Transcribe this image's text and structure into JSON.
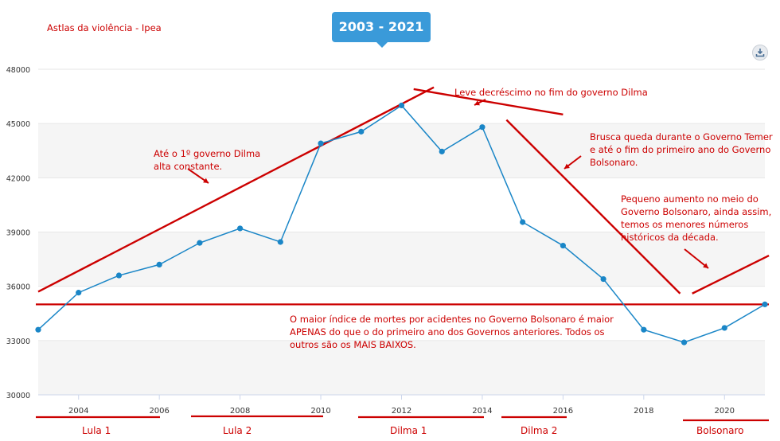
{
  "source_label": "Astlas da violência - Ipea",
  "tooltip": "2003 - 2021",
  "download_icon": "download-icon",
  "chart_data": {
    "type": "line",
    "x": [
      2003,
      2004,
      2005,
      2006,
      2007,
      2008,
      2009,
      2010,
      2011,
      2012,
      2013,
      2014,
      2015,
      2016,
      2017,
      2018,
      2019,
      2020,
      2021
    ],
    "values": [
      33600,
      35650,
      36600,
      37200,
      38400,
      39200,
      38450,
      43900,
      44550,
      46000,
      43450,
      44800,
      39550,
      38250,
      36400,
      33600,
      32900,
      33700,
      35000
    ],
    "ylim": [
      30000,
      48000
    ],
    "yticks": [
      30000,
      33000,
      36000,
      39000,
      42000,
      45000,
      48000
    ],
    "xticks": [
      2004,
      2006,
      2008,
      2010,
      2012,
      2014,
      2016,
      2018,
      2020
    ],
    "xlim": [
      2003,
      2021
    ],
    "grid": true,
    "line_color": "#1a86c7",
    "reference_line": 35000
  },
  "annotations": {
    "until_dilma": "Até o 1º governo Dilma\nalta constante.",
    "slight_decrease": "Leve decréscimo no fim do governo Dilma",
    "sharp_drop": "Brusca queda durante o Governo Temer\ne até o fim do primeiro ano do Governo\nBolsonaro.",
    "small_increase": "Pequeno aumento no meio do\nGoverno Bolsonaro, ainda assim,\ntemos os menores números\nhistóricos da década.",
    "highest_index": "O maior índice de mortes por acidentes no Governo Bolsonaro é maior\nAPENAS do que o do primeiro ano dos Governos anteriores. Todos os\noutros são os MAIS BAIXOS."
  },
  "periods": [
    "Lula 1",
    "Lula 2",
    "Dilma 1",
    "Dilma 2",
    "Bolsonaro"
  ],
  "colors": {
    "annotation": "#cc0000",
    "band": "#f5f5f5",
    "tooltip": "#3a9ad9"
  }
}
